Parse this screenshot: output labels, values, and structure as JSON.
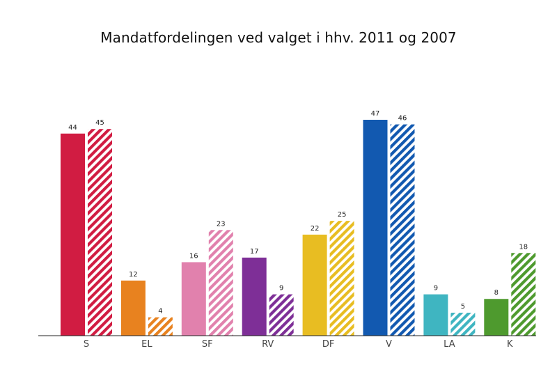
{
  "chart_data": {
    "type": "bar",
    "title": "Mandatfordelingen ved valget i hhv. 2011 og 2007",
    "xlabel": "",
    "ylabel": "",
    "ylim": [
      0,
      50
    ],
    "grid": false,
    "legend": "none",
    "categories": [
      "S",
      "EL",
      "SF",
      "RV",
      "DF",
      "V",
      "LA",
      "K"
    ],
    "colors": [
      "#d11c42",
      "#e8821f",
      "#e181ad",
      "#7e2f97",
      "#e8bd22",
      "#1259b0",
      "#3fb5c1",
      "#4e9a2e"
    ],
    "series": [
      {
        "style": "solid",
        "values": [
          44,
          12,
          16,
          17,
          22,
          47,
          9,
          8
        ]
      },
      {
        "style": "hatched",
        "values": [
          45,
          4,
          23,
          9,
          25,
          46,
          5,
          18
        ]
      }
    ]
  }
}
